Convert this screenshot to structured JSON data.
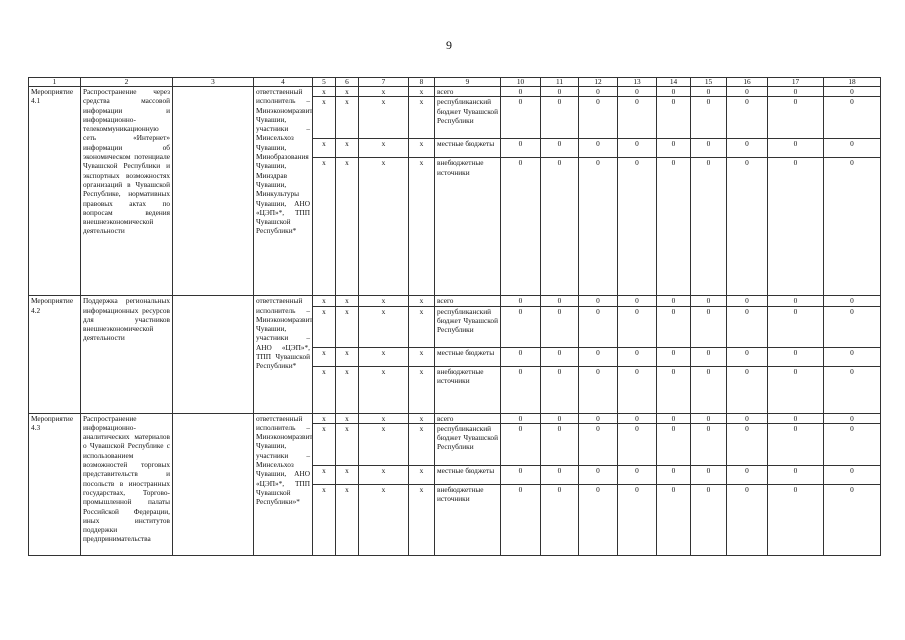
{
  "page_number": "9",
  "header": [
    "1",
    "2",
    "3",
    "4",
    "5",
    "6",
    "7",
    "8",
    "9",
    "10",
    "11",
    "12",
    "13",
    "14",
    "15",
    "16",
    "17",
    "18"
  ],
  "sources": [
    "всего",
    "республиканский бюджет Чувашской Республики",
    "местные бюджеты",
    "внебюджетные источники"
  ],
  "activities": [
    {
      "name": "Мероприятие 4.1",
      "description": "Распространение через средства массовой информации и информационно-телекоммуникационную сеть «Интернет» информации об экономическом потенциале Чувашской Республики и экспортных возможностях организаций в Чувашской Республике, нормативных правовых актах по вопросам ведения внешнеэкономической деятельности",
      "col3": "",
      "executors": "ответственный исполнитель – Минэкономразвития Чувашии, участники – Минсельхоз Чувашии, Минобразования Чувашии, Минздрав Чувашии, Минкультуры Чувашии, АНО «ЦЭП»*, ТПП Чувашской Республики*",
      "rows": [
        {
          "marks": [
            "x",
            "x",
            "x",
            "x"
          ],
          "values": [
            "0",
            "0",
            "0",
            "0",
            "0",
            "0",
            "0",
            "0",
            "0"
          ]
        },
        {
          "marks": [
            "x",
            "x",
            "x",
            "x"
          ],
          "values": [
            "0",
            "0",
            "0",
            "0",
            "0",
            "0",
            "0",
            "0",
            "0"
          ]
        },
        {
          "marks": [
            "x",
            "x",
            "x",
            "x"
          ],
          "values": [
            "0",
            "0",
            "0",
            "0",
            "0",
            "0",
            "0",
            "0",
            "0"
          ]
        },
        {
          "marks": [
            "x",
            "x",
            "x",
            "x"
          ],
          "values": [
            "0",
            "0",
            "0",
            "0",
            "0",
            "0",
            "0",
            "0",
            "0"
          ]
        }
      ]
    },
    {
      "name": "Мероприятие 4.2",
      "description": "Поддержка региональных информационных ресурсов для участников внешнеэкономической деятельности",
      "col3": "",
      "executors": "ответственный исполнитель – Минэкономразвития Чувашии, участники – АНО «ЦЭП»*, ТПП Чувашской Республики*",
      "rows": [
        {
          "marks": [
            "x",
            "x",
            "x",
            "x"
          ],
          "values": [
            "0",
            "0",
            "0",
            "0",
            "0",
            "0",
            "0",
            "0",
            "0"
          ]
        },
        {
          "marks": [
            "x",
            "x",
            "x",
            "x"
          ],
          "values": [
            "0",
            "0",
            "0",
            "0",
            "0",
            "0",
            "0",
            "0",
            "0"
          ]
        },
        {
          "marks": [
            "x",
            "x",
            "x",
            "x"
          ],
          "values": [
            "0",
            "0",
            "0",
            "0",
            "0",
            "0",
            "0",
            "0",
            "0"
          ]
        },
        {
          "marks": [
            "x",
            "x",
            "x",
            "x"
          ],
          "values": [
            "0",
            "0",
            "0",
            "0",
            "0",
            "0",
            "0",
            "0",
            "0"
          ]
        }
      ]
    },
    {
      "name": "Мероприятие 4.3",
      "description": "Распространение информационно-аналитических материалов о Чувашской Республике с использованием возможностей торговых представительств и посольств в иностранных государствах, Торгово-промышленной палаты Российской Федерации, иных институтов поддержки предпринимательства",
      "col3": "",
      "executors": "ответственный исполнитель – Минэкономразвития Чувашии, участники – Минсельхоз Чувашии, АНО «ЦЭП»*, ТПП Чувашской Республики»*",
      "rows": [
        {
          "marks": [
            "x",
            "x",
            "x",
            "x"
          ],
          "values": [
            "0",
            "0",
            "0",
            "0",
            "0",
            "0",
            "0",
            "0",
            "0"
          ]
        },
        {
          "marks": [
            "x",
            "x",
            "x",
            "x"
          ],
          "values": [
            "0",
            "0",
            "0",
            "0",
            "0",
            "0",
            "0",
            "0",
            "0"
          ]
        },
        {
          "marks": [
            "x",
            "x",
            "x",
            "x"
          ],
          "values": [
            "0",
            "0",
            "0",
            "0",
            "0",
            "0",
            "0",
            "0",
            "0"
          ]
        },
        {
          "marks": [
            "x",
            "x",
            "x",
            "x"
          ],
          "values": [
            "0",
            "0",
            "0",
            "0",
            "0",
            "0",
            "0",
            "0",
            "0"
          ]
        }
      ]
    }
  ]
}
